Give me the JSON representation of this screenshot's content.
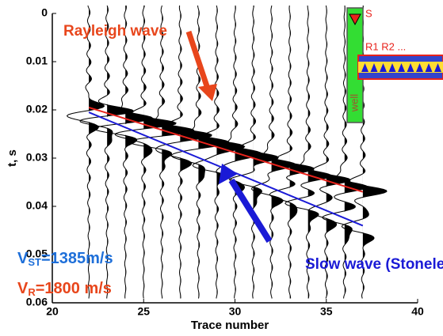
{
  "chart_data": {
    "type": "line",
    "x_label": "Trace number",
    "y_label": "t, s",
    "xlim": [
      20,
      40
    ],
    "xticks": [
      20,
      25,
      30,
      35,
      40
    ],
    "ylim": [
      0,
      0.06
    ],
    "yticks": [
      0,
      0.01,
      0.02,
      0.03,
      0.04,
      0.05,
      0.06
    ],
    "y_inverted": true,
    "series": [
      {
        "name": "Rayleigh wave",
        "color": "#e8231c",
        "x": [
          22,
          37
        ],
        "values": [
          0.0195,
          0.037
        ]
      },
      {
        "name": "Slow wave (Stoneley)",
        "color": "#1a1ad6",
        "x": [
          22,
          37
        ],
        "values": [
          0.0205,
          0.044
        ]
      }
    ],
    "velocity_labels": [
      {
        "main": "V",
        "sub": "ST",
        "rest": "=1385m/s",
        "color": "#1e6fd9"
      },
      {
        "main": "V",
        "sub": "R",
        "rest": "=1800 m/s",
        "color": "#e8461c"
      }
    ],
    "inset": {
      "source": "S",
      "receivers": "R1 R2 ...",
      "well": "well"
    }
  }
}
